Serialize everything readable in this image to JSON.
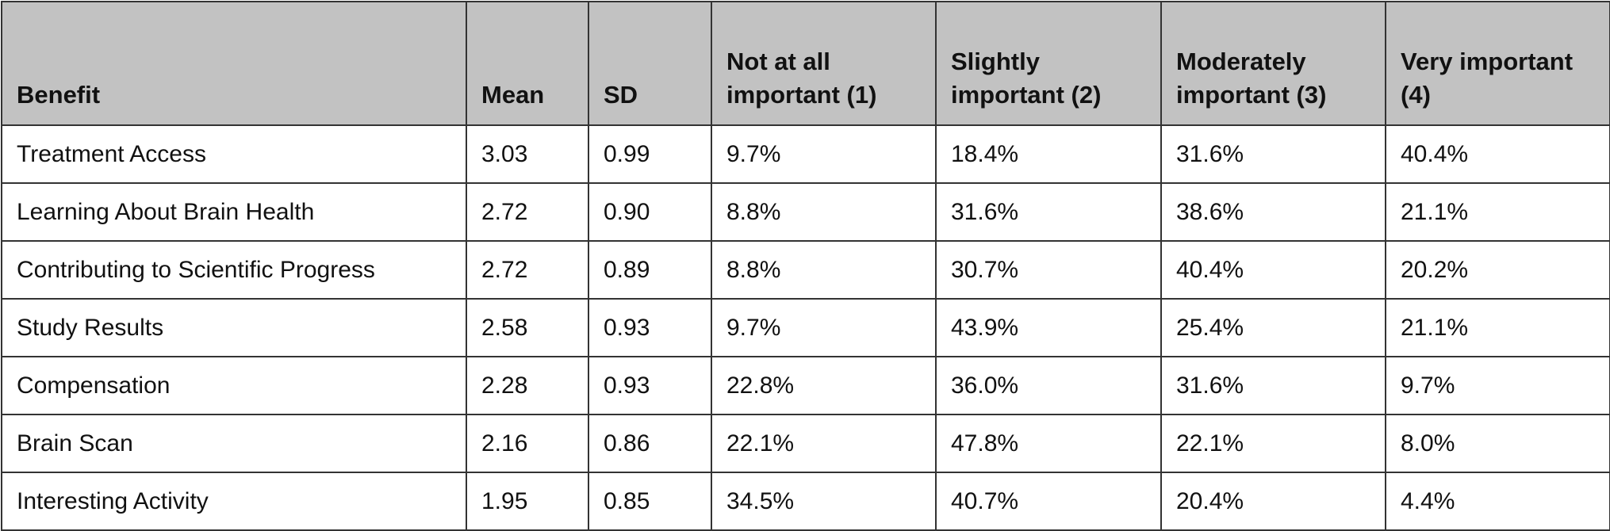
{
  "table": {
    "header": [
      "Benefit",
      "Mean",
      "SD",
      "Not at all important (1)",
      "Slightly important (2)",
      "Moderately important (3)",
      "Very important (4)"
    ],
    "rows": [
      [
        "Treatment Access",
        "3.03",
        "0.99",
        "9.7%",
        "18.4%",
        "31.6%",
        "40.4%"
      ],
      [
        "Learning About Brain Health",
        "2.72",
        "0.90",
        "8.8%",
        "31.6%",
        "38.6%",
        "21.1%"
      ],
      [
        "Contributing to Scientific Progress",
        "2.72",
        "0.89",
        "8.8%",
        "30.7%",
        "40.4%",
        "20.2%"
      ],
      [
        "Study Results",
        "2.58",
        "0.93",
        "9.7%",
        "43.9%",
        "25.4%",
        "21.1%"
      ],
      [
        "Compensation",
        "2.28",
        "0.93",
        "22.8%",
        "36.0%",
        "31.6%",
        "9.7%"
      ],
      [
        "Brain Scan",
        "2.16",
        "0.86",
        "22.1%",
        "47.8%",
        "22.1%",
        "8.0%"
      ],
      [
        "Interesting Activity",
        "1.95",
        "0.85",
        "34.5%",
        "40.7%",
        "20.4%",
        "4.4%"
      ]
    ]
  }
}
